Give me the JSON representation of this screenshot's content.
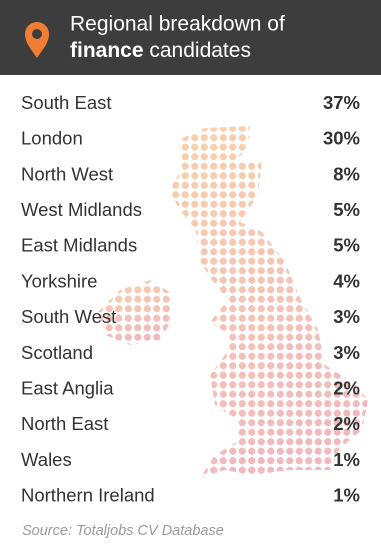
{
  "header": {
    "title": [
      "Regional breakdown of",
      "finance",
      "candidates"
    ]
  },
  "table": {
    "rows": [
      [
        "South East",
        "37%"
      ],
      [
        "London",
        "30%"
      ],
      [
        "North West",
        "8%"
      ],
      [
        "West Midlands",
        "5%"
      ],
      [
        "East Midlands",
        "5%"
      ],
      [
        "Yorkshire",
        "4%"
      ],
      [
        "South West",
        "3%"
      ],
      [
        "Scotland",
        "3%"
      ],
      [
        "East Anglia",
        "2%"
      ],
      [
        "North East",
        "2%"
      ],
      [
        "Wales",
        "1%"
      ],
      [
        "Northern Ireland",
        "1%"
      ]
    ]
  },
  "footer": {
    "source": "Source: Totaljobs CV Database"
  }
}
